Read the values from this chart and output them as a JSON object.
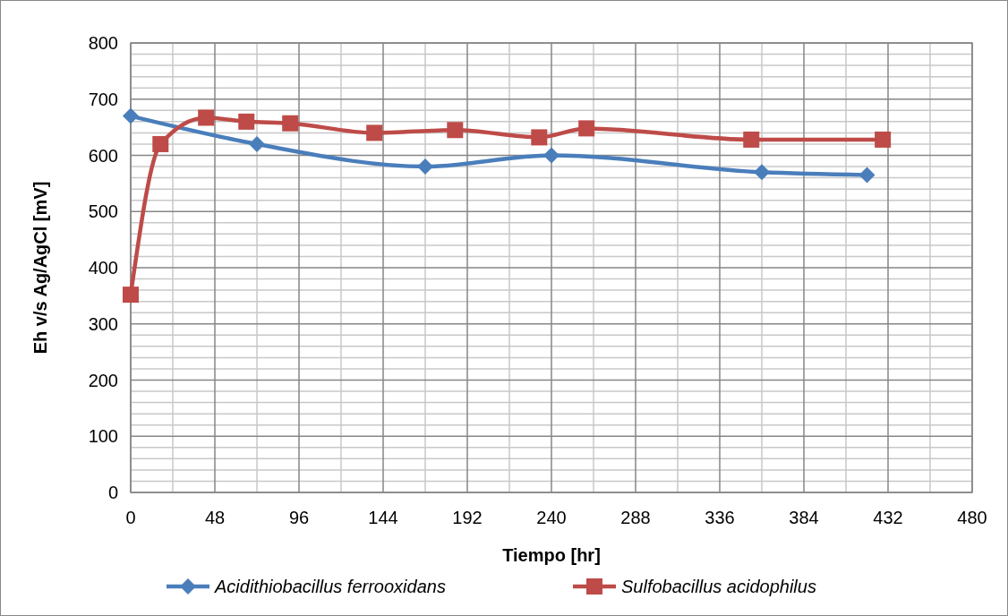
{
  "chart_data": {
    "type": "line",
    "xlabel": "Tiempo [hr]",
    "ylabel": "Eh v/s Ag/AgCl [mV]",
    "xlim": [
      0,
      480
    ],
    "xticks": [
      0,
      48,
      96,
      144,
      192,
      240,
      288,
      336,
      384,
      432,
      480
    ],
    "ylim": [
      0,
      800
    ],
    "yticks": [
      0,
      100,
      200,
      300,
      400,
      500,
      600,
      700,
      800
    ],
    "grid": true,
    "legend": "bottom",
    "series": [
      {
        "name": "Acidithiobacillus ferrooxidans",
        "color": "#4a7ebb",
        "marker": "diamond",
        "x": [
          0,
          72,
          168,
          240,
          360,
          420
        ],
        "values": [
          670,
          620,
          580,
          600,
          570,
          565
        ]
      },
      {
        "name": "Sulfobacillus acidophilus",
        "color": "#be4b48",
        "marker": "square",
        "x": [
          0,
          17,
          43,
          66,
          91,
          139,
          185,
          233,
          260,
          354,
          429
        ],
        "values": [
          352,
          620,
          667,
          660,
          657,
          640,
          645,
          632,
          648,
          628,
          628
        ]
      }
    ]
  }
}
